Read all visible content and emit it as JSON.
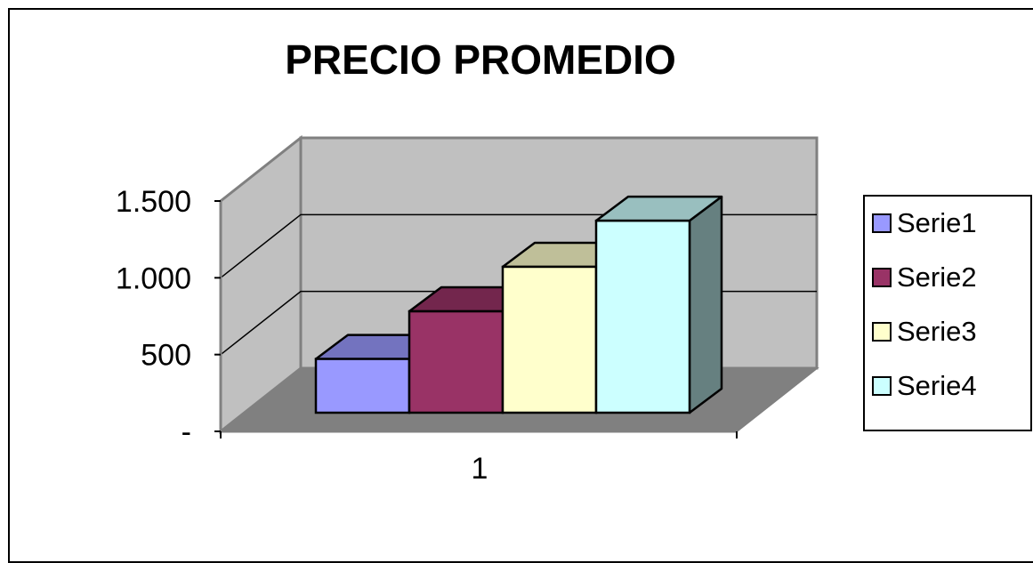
{
  "chart_data": {
    "type": "bar",
    "title": "PRECIO PROMEDIO",
    "xlabel": "",
    "ylabel": "",
    "categories": [
      "1"
    ],
    "ylim": [
      0,
      1500
    ],
    "yticks": [
      {
        "value": 0,
        "label": "-"
      },
      {
        "value": 500,
        "label": "500"
      },
      {
        "value": 1000,
        "label": "1.000"
      },
      {
        "value": 1500,
        "label": "1.500"
      }
    ],
    "grid": true,
    "style": "3d-column",
    "legend_position": "right",
    "series": [
      {
        "name": "Serie1",
        "values": [
          350
        ],
        "color": "#9999ff"
      },
      {
        "name": "Serie2",
        "values": [
          660
        ],
        "color": "#993366"
      },
      {
        "name": "Serie3",
        "values": [
          950
        ],
        "color": "#ffffcc"
      },
      {
        "name": "Serie4",
        "values": [
          1250
        ],
        "color": "#ccffff"
      }
    ],
    "colors": {
      "back_wall": "#c0c0c0",
      "side_wall": "#c0c0c0",
      "floor": "#808080",
      "grid_line": "#000000"
    }
  }
}
